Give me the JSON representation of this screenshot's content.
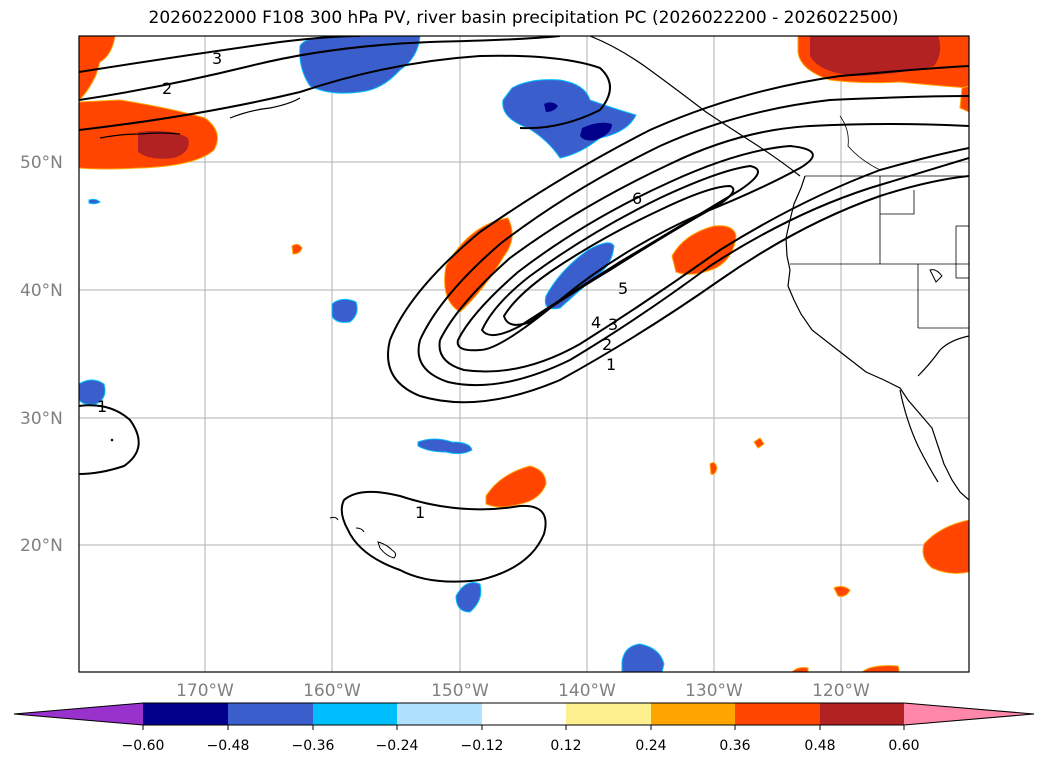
{
  "title": "2026022000 F108 300 hPa PV, river basin precipitation PC (2026022200 - 2026022500)",
  "map": {
    "lat_labels": [
      "50°N",
      "40°N",
      "30°N",
      "20°N"
    ],
    "lon_labels": [
      "170°W",
      "160°W",
      "150°W",
      "140°W",
      "130°W",
      "120°W"
    ],
    "contour_labels": [
      "3",
      "2",
      "6",
      "5",
      "4",
      "3",
      "2",
      "1",
      "1",
      "1"
    ]
  },
  "colorbar": {
    "colors": [
      "#9932cc",
      "#00008b",
      "#3a5fcd",
      "#00bfff",
      "#b0e2ff",
      "#ffffff",
      "#fff08f",
      "#ffa500",
      "#ff4500",
      "#b22222",
      "#ff88aa"
    ],
    "ticks": [
      "−0.60",
      "−0.48",
      "−0.36",
      "−0.24",
      "−0.12",
      "0.12",
      "0.24",
      "0.36",
      "0.48",
      "0.60"
    ]
  }
}
